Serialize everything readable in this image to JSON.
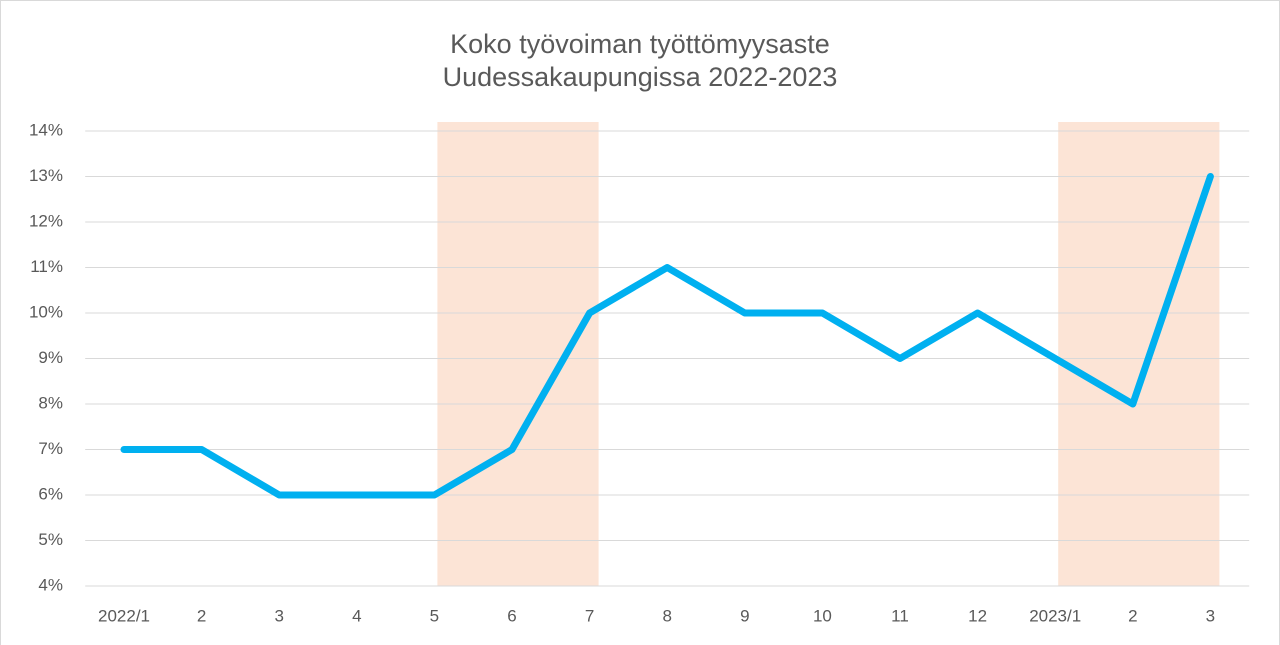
{
  "chart_data": {
    "type": "line",
    "title": [
      "Koko työvoiman työttömyysaste",
      "Uudessakaupungissa 2022-2023"
    ],
    "categories": [
      "2022/1",
      "2",
      "3",
      "4",
      "5",
      "6",
      "7",
      "8",
      "9",
      "10",
      "11",
      "12",
      "2023/1",
      "2",
      "3"
    ],
    "series": [
      {
        "color": "#00b0f0",
        "values": [
          7,
          7,
          6,
          6,
          6,
          7,
          10,
          11,
          10,
          10,
          9,
          10,
          9,
          8,
          13
        ]
      }
    ],
    "ylim": [
      4,
      14
    ],
    "yticks": [
      {
        "value": 4,
        "label": "4%"
      },
      {
        "value": 5,
        "label": "5%"
      },
      {
        "value": 6,
        "label": "6%"
      },
      {
        "value": 7,
        "label": "7%"
      },
      {
        "value": 8,
        "label": "8%"
      },
      {
        "value": 9,
        "label": "9%"
      },
      {
        "value": 10,
        "label": "10%"
      },
      {
        "value": 11,
        "label": "11%"
      },
      {
        "value": 12,
        "label": "12%"
      },
      {
        "value": 13,
        "label": "13%"
      },
      {
        "value": 14,
        "label": "14%"
      }
    ],
    "grid": true,
    "shaded_ranges": [
      [
        4,
        6
      ],
      [
        12,
        14
      ]
    ],
    "shade_color": "#fce4d6"
  }
}
